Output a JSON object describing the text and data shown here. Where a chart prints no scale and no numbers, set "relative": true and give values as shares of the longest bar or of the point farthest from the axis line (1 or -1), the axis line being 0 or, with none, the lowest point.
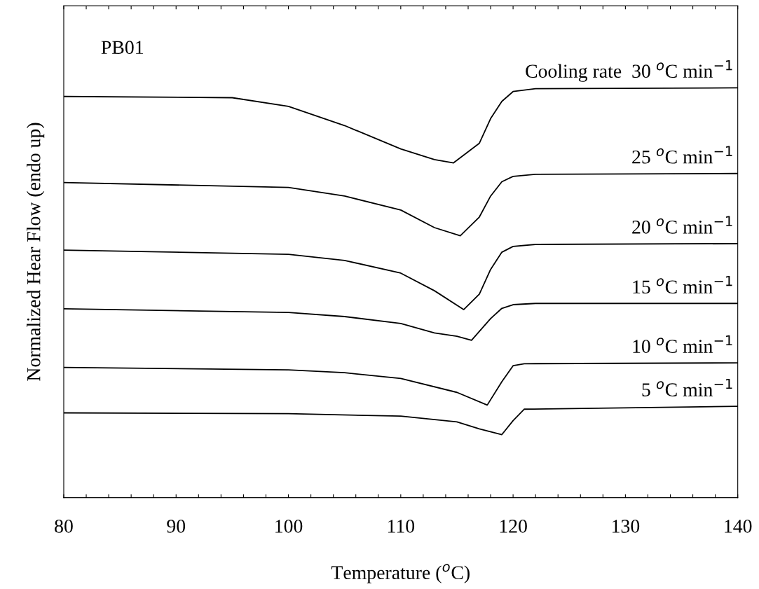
{
  "chart_data": {
    "type": "line",
    "relative": true,
    "xlabel": "Temperature ($^{o}$C)",
    "ylabel": "Normalized Hear Flow (endo up)",
    "annotations": [
      "PB01"
    ],
    "xlim": [
      80,
      140
    ],
    "xticks": [
      80,
      {
        "value": 82,
        "label": null
      },
      {
        "value": 84,
        "label": null
      },
      {
        "value": 86,
        "label": null
      },
      {
        "value": 88,
        "label": null
      },
      90,
      {
        "value": 92,
        "label": null
      },
      {
        "value": 94,
        "label": null
      },
      {
        "value": 96,
        "label": null
      },
      {
        "value": 98,
        "label": null
      },
      100,
      {
        "value": 102,
        "label": null
      },
      {
        "value": 104,
        "label": null
      },
      {
        "value": 106,
        "label": null
      },
      {
        "value": 108,
        "label": null
      },
      110,
      {
        "value": 112,
        "label": null
      },
      {
        "value": 114,
        "label": null
      },
      {
        "value": 116,
        "label": null
      },
      {
        "value": 118,
        "label": null
      },
      120,
      {
        "value": 122,
        "label": null
      },
      {
        "value": 124,
        "label": null
      },
      {
        "value": 126,
        "label": null
      },
      {
        "value": 128,
        "label": null
      },
      130,
      {
        "value": 132,
        "label": null
      },
      {
        "value": 134,
        "label": null
      },
      {
        "value": 136,
        "label": null
      },
      {
        "value": 138,
        "label": null
      },
      140
    ],
    "grid": false,
    "legend": false,
    "marker": "none",
    "line_style": "solid",
    "series": [
      {
        "name": "Cooling rate  30 $^{o}$C min$^{−1}$",
        "color": "#000000",
        "x": [
          80,
          95,
          100,
          105,
          110,
          113,
          114.7,
          117,
          118,
          119,
          120,
          122,
          140
        ],
        "values": [
          0.979,
          0.976,
          0.955,
          0.908,
          0.851,
          0.825,
          0.817,
          0.865,
          0.925,
          0.967,
          0.991,
          0.998,
          1
        ]
      },
      {
        "name": "25 $^{o}$C min$^{−1}$",
        "color": "#000000",
        "x": [
          80,
          100,
          105,
          110,
          113,
          115.3,
          117,
          118,
          119,
          120,
          122,
          140
        ],
        "values": [
          0.769,
          0.757,
          0.736,
          0.702,
          0.659,
          0.639,
          0.685,
          0.736,
          0.771,
          0.784,
          0.789,
          0.791
        ]
      },
      {
        "name": "20 $^{o}$C min$^{−1}$",
        "color": "#000000",
        "x": [
          80,
          100,
          105,
          110,
          113,
          115.6,
          117,
          118,
          119,
          120,
          122,
          140
        ],
        "values": [
          0.604,
          0.594,
          0.579,
          0.548,
          0.505,
          0.459,
          0.497,
          0.557,
          0.599,
          0.613,
          0.618,
          0.62
        ]
      },
      {
        "name": "15 $^{o}$C min$^{−1}$",
        "color": "#000000",
        "x": [
          80,
          100,
          105,
          110,
          113,
          115,
          116.3,
          118,
          119,
          120,
          122,
          140
        ],
        "values": [
          0.461,
          0.452,
          0.442,
          0.425,
          0.402,
          0.394,
          0.384,
          0.437,
          0.462,
          0.471,
          0.474,
          0.474
        ]
      },
      {
        "name": "10 $^{o}$C min$^{−1}$",
        "color": "#000000",
        "x": [
          80,
          100,
          105,
          110,
          115,
          117.7,
          119,
          120,
          121,
          140
        ],
        "values": [
          0.318,
          0.312,
          0.305,
          0.291,
          0.257,
          0.226,
          0.283,
          0.322,
          0.327,
          0.329
        ]
      },
      {
        "name": "5 $^{o}$C min$^{−1}$",
        "color": "#000000",
        "x": [
          80,
          100,
          110,
          115,
          117,
          119,
          120,
          121,
          140
        ],
        "values": [
          0.207,
          0.205,
          0.199,
          0.185,
          0.168,
          0.154,
          0.188,
          0.216,
          0.223
        ]
      }
    ]
  }
}
